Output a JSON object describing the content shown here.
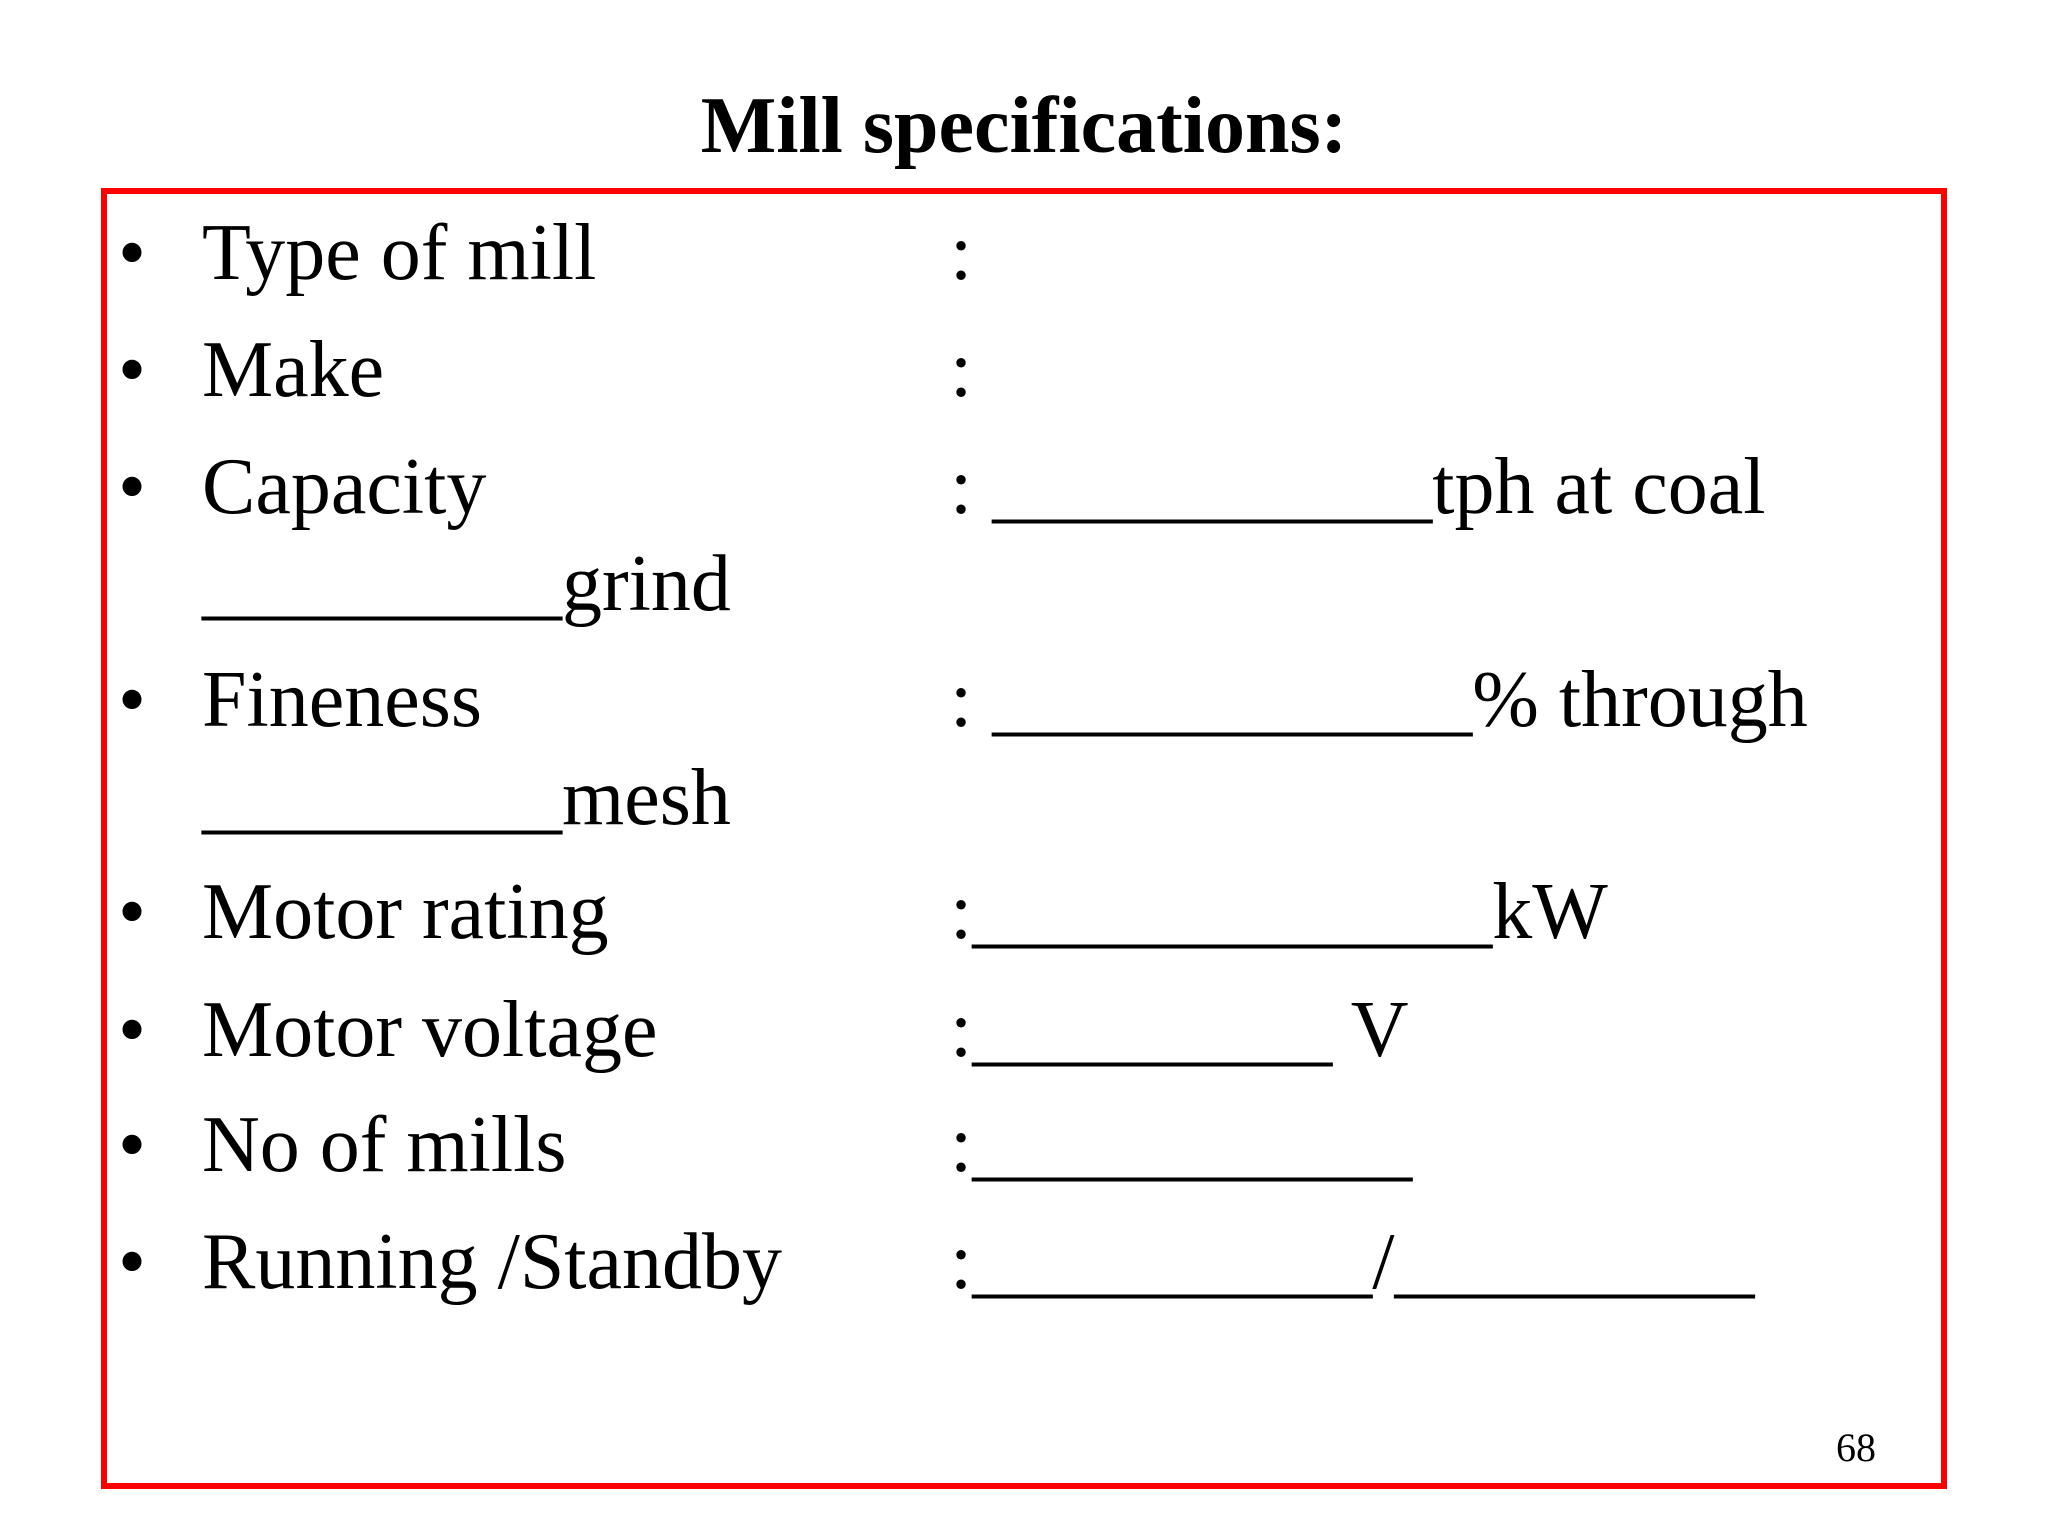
{
  "title": "Mill specifications:",
  "items": [
    {
      "label": "Type of mill",
      "value": ":"
    },
    {
      "label": "Make",
      "value": ":"
    },
    {
      "label": "Capacity",
      "value": ": ___________tph at coal",
      "continuation": "_________grind"
    },
    {
      "label": "Fineness",
      "value": ": ____________% through",
      "continuation": "_________mesh"
    },
    {
      "label": "Motor rating",
      "value": ":_____________kW"
    },
    {
      "label": "Motor voltage",
      "value": ":_________ V"
    },
    {
      "label": "No of mills",
      "value": ":___________"
    },
    {
      "label": "Running /Standby",
      "value": ":__________/_________"
    }
  ],
  "bullet_symbol": "•",
  "page_number": "68",
  "border_color": "#ff0000"
}
